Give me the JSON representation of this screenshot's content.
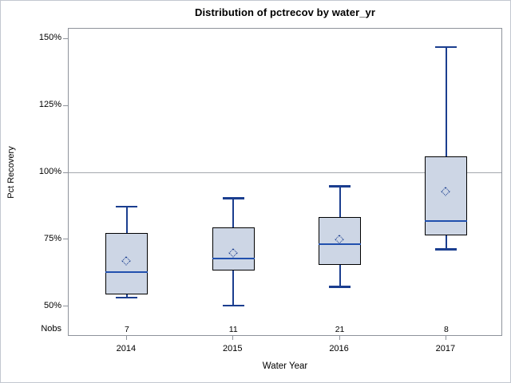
{
  "title": "Distribution of pctrecov by water_yr",
  "chart_data": {
    "type": "box",
    "title": "Distribution of pctrecov by water_yr",
    "xlabel": "Water Year",
    "ylabel": "Pct Recovery",
    "nobs_label": "Nobs",
    "categories": [
      "2014",
      "2015",
      "2016",
      "2017"
    ],
    "nobs": [
      7,
      11,
      21,
      8
    ],
    "series": [
      {
        "category": "2014",
        "min": 53.5,
        "q1": 54.5,
        "median": 63,
        "q3": 77.5,
        "max": 87.5,
        "mean": 67
      },
      {
        "category": "2015",
        "min": 50.5,
        "q1": 63.5,
        "median": 68,
        "q3": 79.5,
        "max": 90.5,
        "mean": 70
      },
      {
        "category": "2016",
        "min": 57.5,
        "q1": 65.5,
        "median": 73.5,
        "q3": 83.5,
        "max": 95,
        "mean": 75
      },
      {
        "category": "2017",
        "min": 71.5,
        "q1": 76.5,
        "median": 82,
        "q3": 106,
        "max": 147,
        "mean": 93
      }
    ],
    "y_ticks": [
      {
        "value": 50,
        "label": "50%"
      },
      {
        "value": 75,
        "label": "75%"
      },
      {
        "value": 100,
        "label": "100%"
      },
      {
        "value": 125,
        "label": "125%"
      },
      {
        "value": 150,
        "label": "150%"
      }
    ],
    "y_range": {
      "min": 38.8,
      "max": 153.8
    },
    "reference_line": 100,
    "grid": false,
    "legend": false,
    "mean_marker": "diamond"
  },
  "colors": {
    "box_fill": "#cdd6e5",
    "box_border": "#000000",
    "whisker": "#1b3e8f",
    "median": "#2150ae",
    "mean_marker": "#1b3e8f",
    "reference_line": "#a4a8ae",
    "axis_line": "#8e939b",
    "text": "#000000",
    "background": "#ffffff"
  }
}
